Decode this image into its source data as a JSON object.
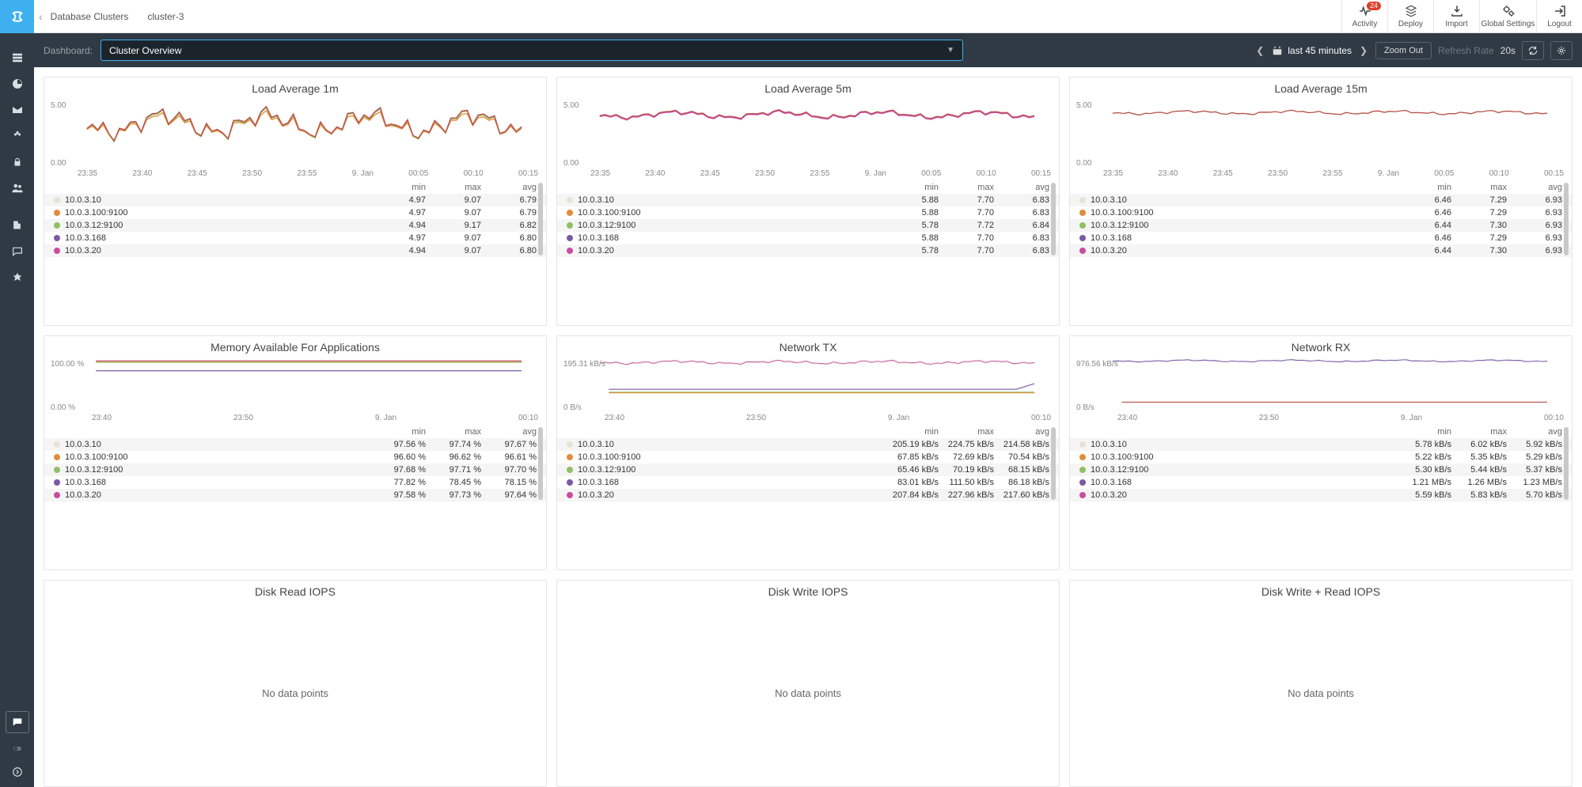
{
  "breadcrumb": {
    "parent": "Database Clusters",
    "current": "cluster-3"
  },
  "header_buttons": {
    "activity": "Activity",
    "activity_badge": "24",
    "deploy": "Deploy",
    "import": "Import",
    "global_settings": "Global Settings",
    "logout": "Logout"
  },
  "subbar": {
    "dashboard_label": "Dashboard:",
    "dashboard_value": "Cluster Overview",
    "caret": "▼",
    "time_range": "last 45 minutes",
    "zoom_out": "Zoom Out",
    "refresh_label": "Refresh Rate",
    "refresh_value": "20s"
  },
  "x_ticks_long": [
    "23:35",
    "23:40",
    "23:45",
    "23:50",
    "23:55",
    "9. Jan",
    "00:05",
    "00:10",
    "00:15"
  ],
  "x_ticks_short": [
    "23:40",
    "23:50",
    "9. Jan",
    "00:10"
  ],
  "series_colors": {
    "10.0.3.10": "#e8e2d6",
    "10.0.3.100:9100": "#e28c3d",
    "10.0.3.12:9100": "#8fc063",
    "10.0.3.168": "#7a5aa3",
    "10.0.3.20": "#c84d9e"
  },
  "panels": [
    {
      "id": "load1",
      "title": "Load Average 1m",
      "y": [
        "5.00",
        "0.00"
      ],
      "xticks": "long",
      "chart": "noisy",
      "rows": [
        {
          "host": "10.0.3.10",
          "min": "4.97",
          "max": "9.07",
          "avg": "6.79"
        },
        {
          "host": "10.0.3.100:9100",
          "min": "4.97",
          "max": "9.07",
          "avg": "6.79"
        },
        {
          "host": "10.0.3.12:9100",
          "min": "4.94",
          "max": "9.17",
          "avg": "6.82"
        },
        {
          "host": "10.0.3.168",
          "min": "4.97",
          "max": "9.07",
          "avg": "6.80"
        },
        {
          "host": "10.0.3.20",
          "min": "4.94",
          "max": "9.07",
          "avg": "6.80"
        }
      ]
    },
    {
      "id": "load5",
      "title": "Load Average 5m",
      "y": [
        "5.00",
        "0.00"
      ],
      "xticks": "long",
      "chart": "smooth",
      "rows": [
        {
          "host": "10.0.3.10",
          "min": "5.88",
          "max": "7.70",
          "avg": "6.83"
        },
        {
          "host": "10.0.3.100:9100",
          "min": "5.88",
          "max": "7.70",
          "avg": "6.83"
        },
        {
          "host": "10.0.3.12:9100",
          "min": "5.78",
          "max": "7.72",
          "avg": "6.84"
        },
        {
          "host": "10.0.3.168",
          "min": "5.88",
          "max": "7.70",
          "avg": "6.83"
        },
        {
          "host": "10.0.3.20",
          "min": "5.78",
          "max": "7.70",
          "avg": "6.83"
        }
      ]
    },
    {
      "id": "load15",
      "title": "Load Average 15m",
      "y": [
        "5.00",
        "0.00"
      ],
      "xticks": "long",
      "chart": "flat",
      "rows": [
        {
          "host": "10.0.3.10",
          "min": "6.46",
          "max": "7.29",
          "avg": "6.93"
        },
        {
          "host": "10.0.3.100:9100",
          "min": "6.46",
          "max": "7.29",
          "avg": "6.93"
        },
        {
          "host": "10.0.3.12:9100",
          "min": "6.44",
          "max": "7.30",
          "avg": "6.93"
        },
        {
          "host": "10.0.3.168",
          "min": "6.46",
          "max": "7.29",
          "avg": "6.93"
        },
        {
          "host": "10.0.3.20",
          "min": "6.44",
          "max": "7.30",
          "avg": "6.93"
        }
      ]
    },
    {
      "id": "mem",
      "title": "Memory Available For Applications",
      "y": [
        "100.00 %",
        "0.00 %"
      ],
      "xticks": "short",
      "chart": "memory",
      "rows": [
        {
          "host": "10.0.3.10",
          "min": "97.56 %",
          "max": "97.74 %",
          "avg": "97.67 %"
        },
        {
          "host": "10.0.3.100:9100",
          "min": "96.60 %",
          "max": "96.62 %",
          "avg": "96.61 %"
        },
        {
          "host": "10.0.3.12:9100",
          "min": "97.68 %",
          "max": "97.71 %",
          "avg": "97.70 %"
        },
        {
          "host": "10.0.3.168",
          "min": "77.82 %",
          "max": "78.45 %",
          "avg": "78.15 %"
        },
        {
          "host": "10.0.3.20",
          "min": "97.58 %",
          "max": "97.73 %",
          "avg": "97.64 %"
        }
      ]
    },
    {
      "id": "ntx",
      "title": "Network TX",
      "y": [
        "195.31 kB/s",
        "0 B/s"
      ],
      "xticks": "short",
      "chart": "tx",
      "rows": [
        {
          "host": "10.0.3.10",
          "min": "205.19 kB/s",
          "max": "224.75 kB/s",
          "avg": "214.58 kB/s"
        },
        {
          "host": "10.0.3.100:9100",
          "min": "67.85 kB/s",
          "max": "72.69 kB/s",
          "avg": "70.54 kB/s"
        },
        {
          "host": "10.0.3.12:9100",
          "min": "65.46 kB/s",
          "max": "70.19 kB/s",
          "avg": "68.15 kB/s"
        },
        {
          "host": "10.0.3.168",
          "min": "83.01 kB/s",
          "max": "111.50 kB/s",
          "avg": "86.18 kB/s"
        },
        {
          "host": "10.0.3.20",
          "min": "207.84 kB/s",
          "max": "227.96 kB/s",
          "avg": "217.60 kB/s"
        }
      ]
    },
    {
      "id": "nrx",
      "title": "Network RX",
      "y": [
        "976.56 kB/s",
        "0 B/s"
      ],
      "xticks": "short",
      "chart": "rx",
      "rows": [
        {
          "host": "10.0.3.10",
          "min": "5.78 kB/s",
          "max": "6.02 kB/s",
          "avg": "5.92 kB/s"
        },
        {
          "host": "10.0.3.100:9100",
          "min": "5.22 kB/s",
          "max": "5.35 kB/s",
          "avg": "5.29 kB/s"
        },
        {
          "host": "10.0.3.12:9100",
          "min": "5.30 kB/s",
          "max": "5.44 kB/s",
          "avg": "5.37 kB/s"
        },
        {
          "host": "10.0.3.168",
          "min": "1.21 MB/s",
          "max": "1.26 MB/s",
          "avg": "1.23 MB/s"
        },
        {
          "host": "10.0.3.20",
          "min": "5.59 kB/s",
          "max": "5.83 kB/s",
          "avg": "5.70 kB/s"
        }
      ]
    },
    {
      "id": "diskr",
      "title": "Disk Read IOPS",
      "nodata": "No data points"
    },
    {
      "id": "diskw",
      "title": "Disk Write IOPS",
      "nodata": "No data points"
    },
    {
      "id": "diskrw",
      "title": "Disk Write + Read IOPS",
      "nodata": "No data points"
    }
  ],
  "legend_headers": {
    "min": "min",
    "max": "max",
    "avg": "avg"
  }
}
